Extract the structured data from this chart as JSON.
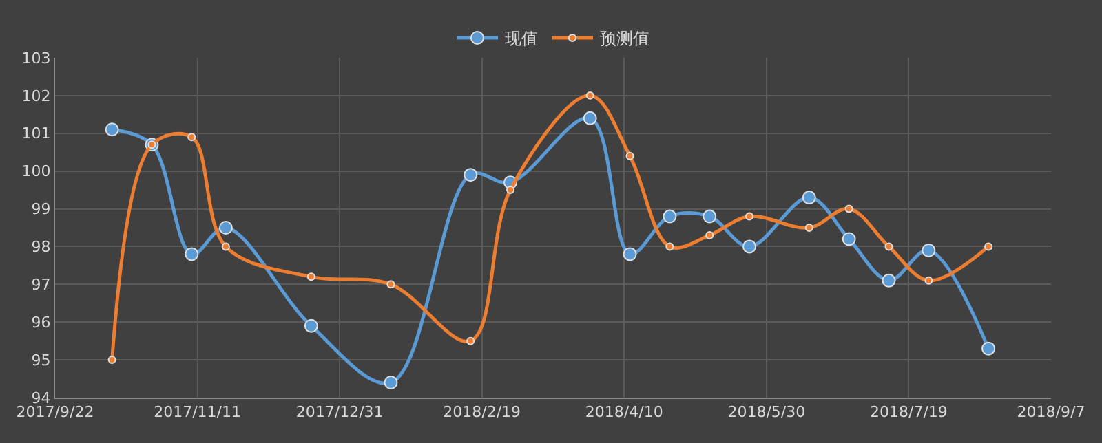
{
  "chart_data": {
    "type": "line",
    "legend": "top",
    "grid": true,
    "marker": "circle",
    "line_style": "solid",
    "x": [
      "2017-10-12",
      "2017-10-26",
      "2017-11-09",
      "2017-11-21",
      "2017-12-21",
      "2018-01-18",
      "2018-02-15",
      "2018-03-01",
      "2018-03-29",
      "2018-04-12",
      "2018-04-26",
      "2018-05-10",
      "2018-05-24",
      "2018-06-14",
      "2018-06-28",
      "2018-07-12",
      "2018-07-26",
      "2018-08-16"
    ],
    "series": [
      {
        "name": "现值",
        "color": "#5b9bd5",
        "values": [
          101.1,
          100.7,
          97.8,
          98.5,
          95.9,
          94.4,
          99.9,
          99.7,
          101.4,
          97.8,
          98.8,
          98.8,
          98.0,
          99.3,
          98.2,
          97.1,
          97.9,
          95.3
        ]
      },
      {
        "name": "预测值",
        "color": "#ed7d31",
        "values": [
          95.0,
          100.7,
          100.9,
          98.0,
          97.2,
          97.0,
          95.5,
          99.5,
          102.0,
          100.4,
          98.0,
          98.3,
          98.8,
          98.5,
          99.0,
          98.0,
          97.1,
          98.0
        ]
      }
    ],
    "xlim": [
      "2017-09-22",
      "2018-09-07"
    ],
    "xticks": [
      {
        "value": "2017-09-22",
        "label": "2017/9/22"
      },
      {
        "value": "2017-11-11",
        "label": "2017/11/11"
      },
      {
        "value": "2017-12-31",
        "label": "2017/12/31"
      },
      {
        "value": "2018-02-19",
        "label": "2018/2/19"
      },
      {
        "value": "2018-04-10",
        "label": "2018/4/10"
      },
      {
        "value": "2018-05-30",
        "label": "2018/5/30"
      },
      {
        "value": "2018-07-19",
        "label": "2018/7/19"
      },
      {
        "value": "2018-09-07",
        "label": "2018/9/7"
      }
    ],
    "ylim": [
      94,
      103
    ],
    "yticks": [
      94,
      95,
      96,
      97,
      98,
      99,
      100,
      101,
      102,
      103
    ]
  }
}
